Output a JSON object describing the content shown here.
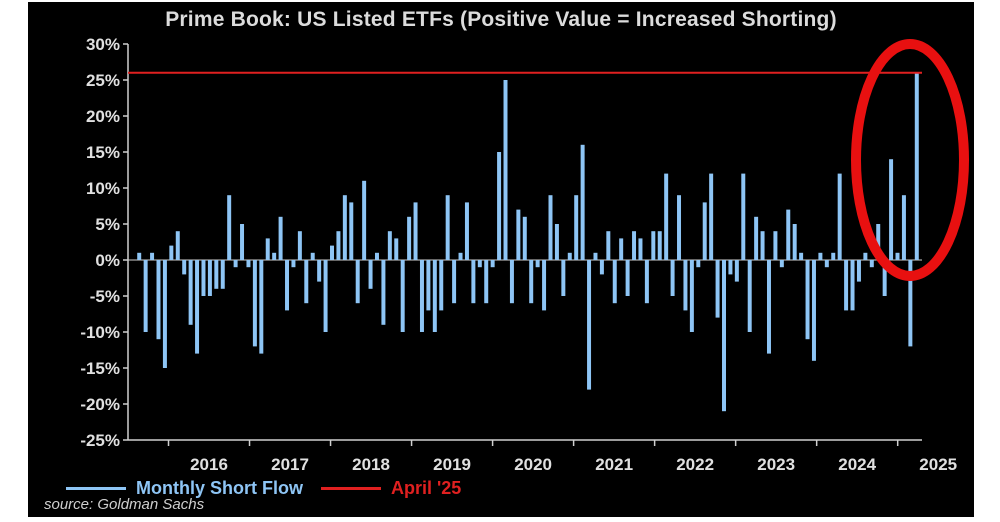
{
  "chart_data": {
    "type": "bar",
    "title": "Prime Book: US Listed ETFs (Positive Value = Increased Shorting)",
    "ylabel": "",
    "xlabel": "",
    "ylim": [
      -25,
      30
    ],
    "yticks": [
      "30%",
      "25%",
      "20%",
      "15%",
      "10%",
      "5%",
      "0%",
      "-5%",
      "-10%",
      "-15%",
      "-20%",
      "-25%"
    ],
    "ytick_values": [
      30,
      25,
      20,
      15,
      10,
      5,
      0,
      -5,
      -10,
      -15,
      -20,
      -25
    ],
    "xticks": [
      "2016",
      "2017",
      "2018",
      "2019",
      "2020",
      "2021",
      "2022",
      "2023",
      "2024",
      "2025"
    ],
    "x_start_year": 2015.5,
    "x_end_year": 2025.3,
    "series": [
      {
        "name": "Monthly Short Flow",
        "color": "#8ec5f5",
        "values": [
          1,
          -10,
          1,
          -11,
          -15,
          2,
          4,
          -2,
          -9,
          -13,
          -5,
          -5,
          -4,
          -4,
          9,
          -1,
          5,
          -1,
          -12,
          -13,
          3,
          1,
          6,
          -7,
          -1,
          4,
          -6,
          1,
          -3,
          -10,
          2,
          4,
          9,
          8,
          -6,
          11,
          -4,
          1,
          -9,
          4,
          3,
          -10,
          6,
          8,
          -10,
          -7,
          -10,
          -7,
          9,
          -6,
          1,
          8,
          -6,
          -1,
          -6,
          -1,
          15,
          25,
          -6,
          7,
          6,
          -6,
          -1,
          -7,
          9,
          5,
          -5,
          1,
          9,
          16,
          -18,
          1,
          -2,
          4,
          -6,
          3,
          -5,
          4,
          3,
          -6,
          4,
          4,
          12,
          -5,
          9,
          -7,
          -10,
          -1,
          8,
          12,
          -8,
          -21,
          -2,
          -3,
          12,
          -10,
          6,
          4,
          -13,
          4,
          -1,
          7,
          5,
          1,
          -11,
          -14,
          1,
          -1,
          1,
          12,
          -7,
          -7,
          -3,
          1,
          -1,
          5,
          -5,
          14,
          1,
          9,
          -12,
          26
        ]
      }
    ],
    "reference_line": {
      "name": "April '25",
      "value": 26,
      "color": "#e02020"
    },
    "annotation": {
      "type": "ellipse",
      "color": "#e81010",
      "note": "highlights most recent bars"
    },
    "source": "source: Goldman Sachs"
  }
}
